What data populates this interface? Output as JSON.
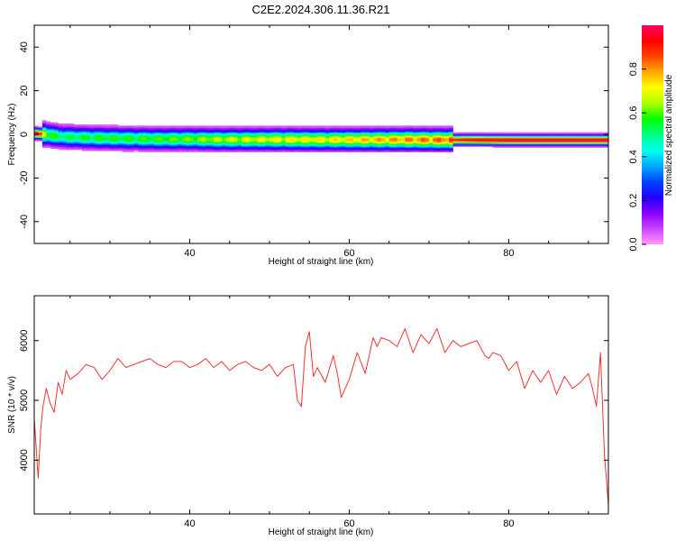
{
  "title": "C2E2.2024.306.11.36.R21",
  "colors": {
    "snr_line": "#ee3333",
    "frame": "#000000",
    "background": "#ffffff"
  },
  "chart_data": [
    {
      "type": "heatmap",
      "name": "spectrogram",
      "xlabel": "Height of straight line (km)",
      "ylabel": "Frequency (Hz)",
      "xlim": [
        20.5,
        92.5
      ],
      "ylim": [
        -50,
        50
      ],
      "x_ticks": [
        40,
        60,
        80
      ],
      "x_tick_labels": [
        "40",
        "60",
        "80"
      ],
      "y_ticks": [
        -40,
        -20,
        0,
        20,
        40
      ],
      "y_tick_labels": [
        "-40",
        "-20",
        "0",
        "20",
        "40"
      ],
      "colorbar": {
        "label": "Normalized spectral amplitude",
        "range": [
          0,
          1
        ],
        "ticks": [
          0.0,
          0.2,
          0.4,
          0.6,
          0.8
        ],
        "tick_labels": [
          "0.0",
          "0.2",
          "0.4",
          "0.6",
          "0.8"
        ],
        "colormap": [
          "#ff99ff",
          "#cc44ff",
          "#8800ff",
          "#2200ff",
          "#0044ff",
          "#00aaff",
          "#00ffee",
          "#00ff88",
          "#00ff00",
          "#aaff00",
          "#ffff00",
          "#ffaa00",
          "#ff4400",
          "#ff0000",
          "#ff0066"
        ]
      },
      "ridge": [
        {
          "x": 21,
          "center": 0.5,
          "amp": 1.0
        },
        {
          "x": 22,
          "center": 0.0,
          "amp": 0.65
        },
        {
          "x": 24,
          "center": -1.0,
          "amp": 0.55
        },
        {
          "x": 28,
          "center": -1.5,
          "amp": 0.6
        },
        {
          "x": 32,
          "center": -1.8,
          "amp": 0.6
        },
        {
          "x": 36,
          "center": -2.0,
          "amp": 0.62
        },
        {
          "x": 40,
          "center": -2.0,
          "amp": 0.65
        },
        {
          "x": 44,
          "center": -2.2,
          "amp": 0.7
        },
        {
          "x": 48,
          "center": -2.2,
          "amp": 0.72
        },
        {
          "x": 52,
          "center": -2.2,
          "amp": 0.75
        },
        {
          "x": 56,
          "center": -2.3,
          "amp": 0.75
        },
        {
          "x": 60,
          "center": -2.3,
          "amp": 0.78
        },
        {
          "x": 64,
          "center": -2.3,
          "amp": 0.82
        },
        {
          "x": 68,
          "center": -2.3,
          "amp": 0.85
        },
        {
          "x": 72,
          "center": -2.4,
          "amp": 0.88
        },
        {
          "x": 75,
          "center": -2.4,
          "amp": 0.95
        },
        {
          "x": 80,
          "center": -2.5,
          "amp": 1.0
        },
        {
          "x": 85,
          "center": -2.5,
          "amp": 1.0
        },
        {
          "x": 90,
          "center": -2.5,
          "amp": 1.0
        },
        {
          "x": 92.5,
          "center": -2.5,
          "amp": 1.0
        }
      ]
    },
    {
      "type": "line",
      "name": "snr",
      "xlabel": "Height of straight line (km)",
      "ylabel": "SNR (10 * v/v)",
      "xlim": [
        20.5,
        92.5
      ],
      "ylim": [
        3100,
        6750
      ],
      "x_ticks": [
        40,
        60,
        80
      ],
      "x_tick_labels": [
        "40",
        "60",
        "80"
      ],
      "y_ticks": [
        4000,
        5000,
        6000
      ],
      "y_tick_labels": [
        "4000",
        "5000",
        "6000"
      ],
      "series": [
        {
          "x": [
            20.5,
            21.0,
            21.3,
            21.6,
            22.0,
            22.5,
            23.0,
            23.5,
            24.0,
            24.5,
            25.0,
            26.0,
            27.0,
            28.0,
            29.0,
            30.0,
            31.0,
            32.0,
            33.0,
            34.0,
            35.0,
            36.0,
            37.0,
            38.0,
            39.0,
            40.0,
            41.0,
            42.0,
            43.0,
            44.0,
            45.0,
            46.0,
            47.0,
            48.0,
            49.0,
            50.0,
            51.0,
            52.0,
            53.0,
            53.5,
            54.0,
            54.5,
            55.0,
            55.5,
            56.0,
            57.0,
            58.0,
            58.5,
            59.0,
            60.0,
            61.0,
            62.0,
            63.0,
            63.5,
            64.0,
            65.0,
            66.0,
            67.0,
            68.0,
            69.0,
            70.0,
            71.0,
            72.0,
            73.0,
            74.0,
            75.0,
            76.0,
            77.0,
            77.5,
            78.0,
            79.0,
            80.0,
            81.0,
            82.0,
            83.0,
            84.0,
            85.0,
            86.0,
            87.0,
            88.0,
            89.0,
            90.0,
            90.5,
            91.0,
            91.5,
            92.0,
            92.5
          ],
          "values": [
            4700,
            3700,
            4500,
            4900,
            5200,
            4950,
            4800,
            5300,
            5100,
            5500,
            5350,
            5450,
            5600,
            5550,
            5350,
            5500,
            5700,
            5550,
            5600,
            5650,
            5700,
            5600,
            5550,
            5650,
            5650,
            5550,
            5600,
            5700,
            5550,
            5650,
            5500,
            5600,
            5650,
            5550,
            5500,
            5600,
            5400,
            5550,
            5600,
            5000,
            4900,
            5900,
            6150,
            5400,
            5550,
            5300,
            5750,
            5450,
            5050,
            5350,
            5800,
            5450,
            6050,
            5900,
            6050,
            6000,
            5900,
            6200,
            5800,
            6100,
            5950,
            6200,
            5800,
            6000,
            5900,
            5950,
            6000,
            5750,
            5700,
            5800,
            5750,
            5500,
            5650,
            5200,
            5500,
            5300,
            5500,
            5100,
            5400,
            5200,
            5300,
            5450,
            5200,
            4900,
            5800,
            4100,
            3250
          ]
        }
      ]
    }
  ]
}
